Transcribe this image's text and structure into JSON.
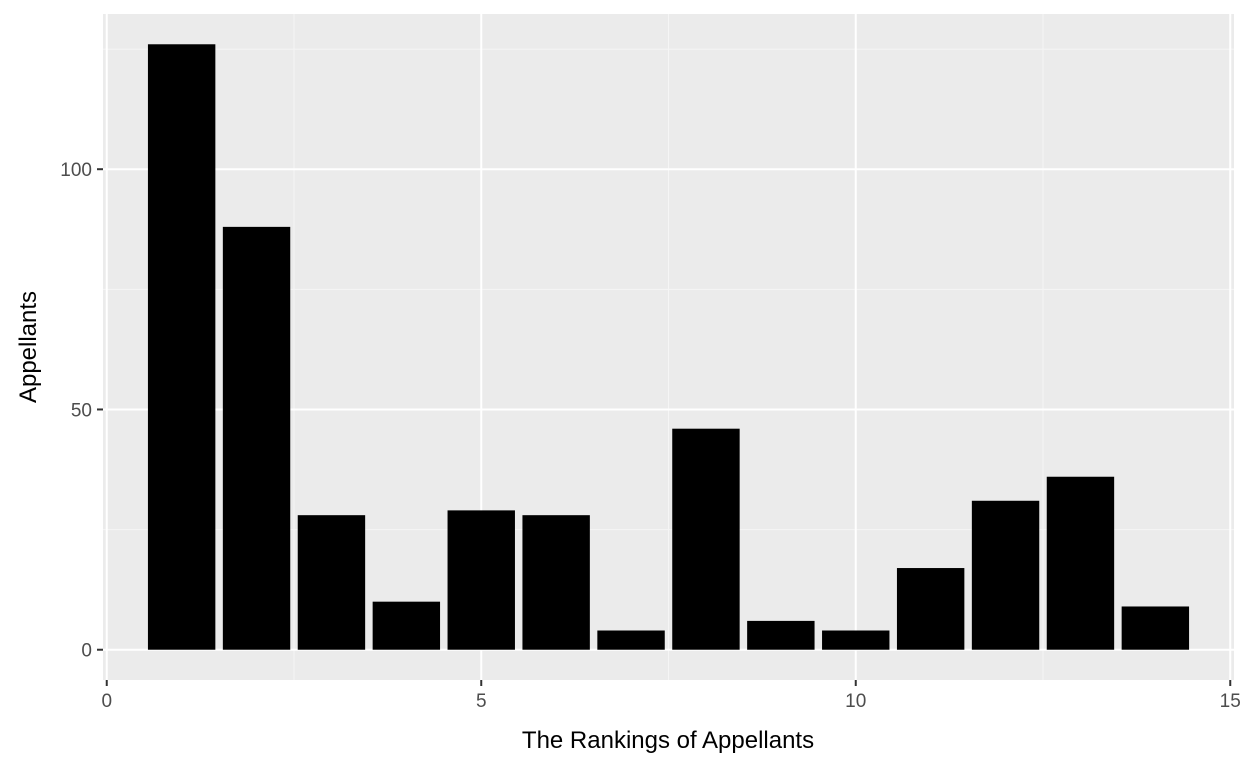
{
  "chart_data": {
    "type": "bar",
    "title": "",
    "xlabel": "The Rankings of Appellants",
    "ylabel": "Appellants",
    "x": [
      1,
      2,
      3,
      4,
      5,
      6,
      7,
      8,
      9,
      10,
      11,
      12,
      13,
      14
    ],
    "values": [
      126,
      88,
      28,
      10,
      29,
      28,
      4,
      46,
      6,
      4,
      17,
      31,
      36,
      9
    ],
    "xlim": [
      -0.05,
      15.05
    ],
    "ylim": [
      -6.3,
      132.3
    ],
    "x_ticks": [
      0,
      5,
      10,
      15
    ],
    "x_tick_labels": [
      "0",
      "5",
      "10",
      "15"
    ],
    "y_ticks": [
      0,
      50,
      100
    ],
    "y_tick_labels": [
      "0",
      "50",
      "100"
    ],
    "bar_width": 0.9,
    "grid": true,
    "legend": "none",
    "colors": {
      "bar": "#000000",
      "panel_background": "#ebebeb",
      "grid_major": "#ffffff",
      "grid_minor": "#f5f5f5",
      "tick_label": "#4d4d4d",
      "axis_title": "#000000"
    }
  }
}
